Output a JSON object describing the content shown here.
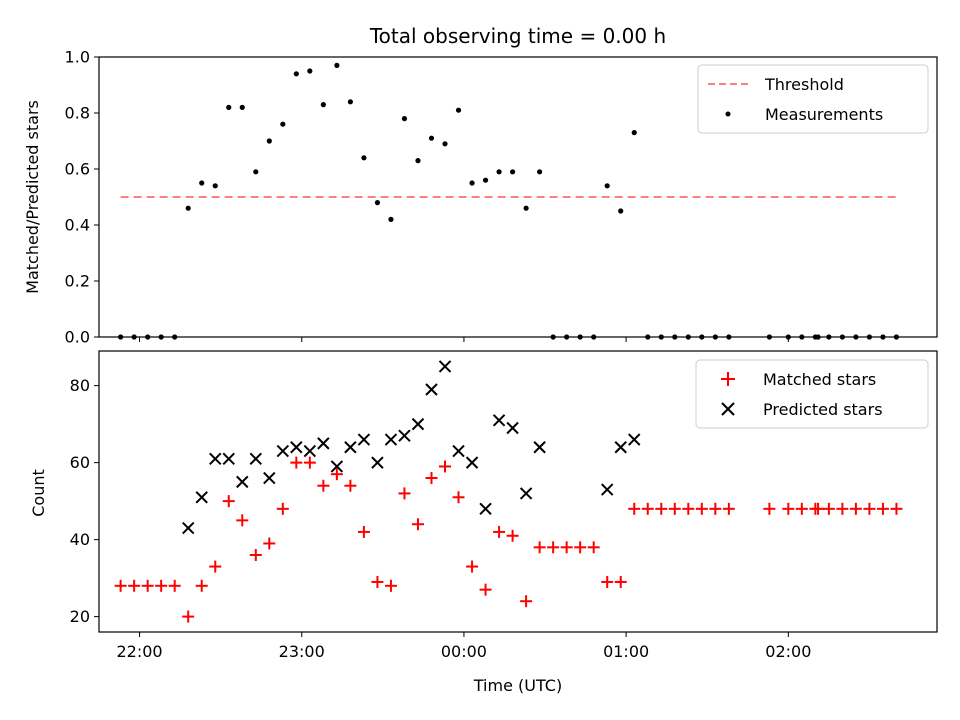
{
  "chart_data": [
    {
      "type": "scatter",
      "title": "Total observing time = 0.00 h",
      "ylabel": "Matched/Predicted stars",
      "xlim": [
        "21:45",
        "02:55"
      ],
      "ylim": [
        0,
        1.0
      ],
      "yticks": [
        "0.0",
        "0.2",
        "0.4",
        "0.6",
        "0.8",
        "1.0"
      ],
      "xticks_shown": false,
      "legend_position": "top-right",
      "threshold": {
        "name": "Threshold",
        "y": 0.5,
        "x_start": "21:53",
        "x_end": "02:40",
        "color": "#ff7f7f",
        "style": "dashed"
      },
      "series": [
        {
          "name": "Measurements",
          "color": "#000000",
          "x": [
            "21:53",
            "21:58",
            "22:03",
            "22:08",
            "22:13",
            "22:18",
            "22:23",
            "22:28",
            "22:33",
            "22:38",
            "22:43",
            "22:48",
            "22:53",
            "22:58",
            "23:03",
            "23:08",
            "23:13",
            "23:18",
            "23:23",
            "23:28",
            "23:33",
            "23:38",
            "23:43",
            "23:48",
            "23:53",
            "23:58",
            "00:03",
            "00:08",
            "00:13",
            "00:18",
            "00:23",
            "00:28",
            "00:33",
            "00:38",
            "00:43",
            "00:48",
            "00:53",
            "00:58",
            "01:03",
            "01:08",
            "01:13",
            "01:18",
            "01:23",
            "01:28",
            "01:33",
            "01:38",
            "01:53",
            "02:00",
            "02:05",
            "02:10",
            "02:11",
            "02:15",
            "02:20",
            "02:25",
            "02:30",
            "02:35",
            "02:40"
          ],
          "y": [
            0.0,
            0.0,
            0.0,
            0.0,
            0.0,
            0.46,
            0.55,
            0.54,
            0.82,
            0.82,
            0.59,
            0.7,
            0.76,
            0.94,
            0.95,
            0.83,
            0.97,
            0.84,
            0.64,
            0.48,
            0.42,
            0.78,
            0.63,
            0.71,
            0.69,
            0.81,
            0.55,
            0.56,
            0.59,
            0.59,
            0.46,
            0.59,
            0.0,
            0.0,
            0.0,
            0.0,
            0.54,
            0.45,
            0.73,
            0.0,
            0.0,
            0.0,
            0.0,
            0.0,
            0.0,
            0.0,
            0.0,
            0.0,
            0.0,
            0.0,
            0.0,
            0.0,
            0.0,
            0.0,
            0.0,
            0.0,
            0.0
          ]
        }
      ]
    },
    {
      "type": "scatter",
      "xlabel": "Time (UTC)",
      "ylabel": "Count",
      "xlim": [
        "21:45",
        "02:55"
      ],
      "ylim": [
        16,
        89
      ],
      "yticks": [
        "20",
        "40",
        "60",
        "80"
      ],
      "xticks": [
        "22:00",
        "23:00",
        "00:00",
        "01:00",
        "02:00"
      ],
      "legend_position": "top-right",
      "series": [
        {
          "name": "Matched stars",
          "color": "#ff0000",
          "marker": "plus",
          "x": [
            "21:53",
            "21:58",
            "22:03",
            "22:08",
            "22:13",
            "22:18",
            "22:23",
            "22:28",
            "22:33",
            "22:38",
            "22:43",
            "22:48",
            "22:53",
            "22:58",
            "23:03",
            "23:08",
            "23:13",
            "23:18",
            "23:23",
            "23:28",
            "23:33",
            "23:38",
            "23:43",
            "23:48",
            "23:53",
            "23:58",
            "00:03",
            "00:08",
            "00:13",
            "00:18",
            "00:23",
            "00:28",
            "00:33",
            "00:38",
            "00:43",
            "00:48",
            "00:53",
            "00:58",
            "01:03",
            "01:08",
            "01:13",
            "01:18",
            "01:23",
            "01:28",
            "01:33",
            "01:38",
            "01:53",
            "02:00",
            "02:05",
            "02:10",
            "02:11",
            "02:15",
            "02:20",
            "02:25",
            "02:30",
            "02:35",
            "02:40"
          ],
          "y": [
            28,
            28,
            28,
            28,
            28,
            20,
            28,
            33,
            50,
            45,
            36,
            39,
            48,
            60,
            60,
            54,
            57,
            54,
            42,
            29,
            28,
            52,
            44,
            56,
            59,
            51,
            33,
            27,
            42,
            41,
            24,
            38,
            38,
            38,
            38,
            38,
            29,
            29,
            48,
            48,
            48,
            48,
            48,
            48,
            48,
            48,
            48,
            48,
            48,
            48,
            48,
            48,
            48,
            48,
            48,
            48,
            48
          ]
        },
        {
          "name": "Predicted stars",
          "color": "#000000",
          "marker": "x",
          "x": [
            "22:18",
            "22:23",
            "22:28",
            "22:33",
            "22:38",
            "22:43",
            "22:48",
            "22:53",
            "22:58",
            "23:03",
            "23:08",
            "23:13",
            "23:18",
            "23:23",
            "23:28",
            "23:33",
            "23:38",
            "23:43",
            "23:48",
            "23:53",
            "23:58",
            "00:03",
            "00:08",
            "00:13",
            "00:18",
            "00:23",
            "00:28",
            "00:33",
            "00:53",
            "00:58",
            "01:03"
          ],
          "y": [
            43,
            51,
            61,
            61,
            55,
            61,
            56,
            63,
            64,
            63,
            65,
            59,
            64,
            66,
            60,
            66,
            67,
            70,
            79,
            85,
            63,
            60,
            48,
            71,
            69,
            52,
            64,
            null,
            53,
            64,
            66
          ]
        }
      ]
    }
  ]
}
